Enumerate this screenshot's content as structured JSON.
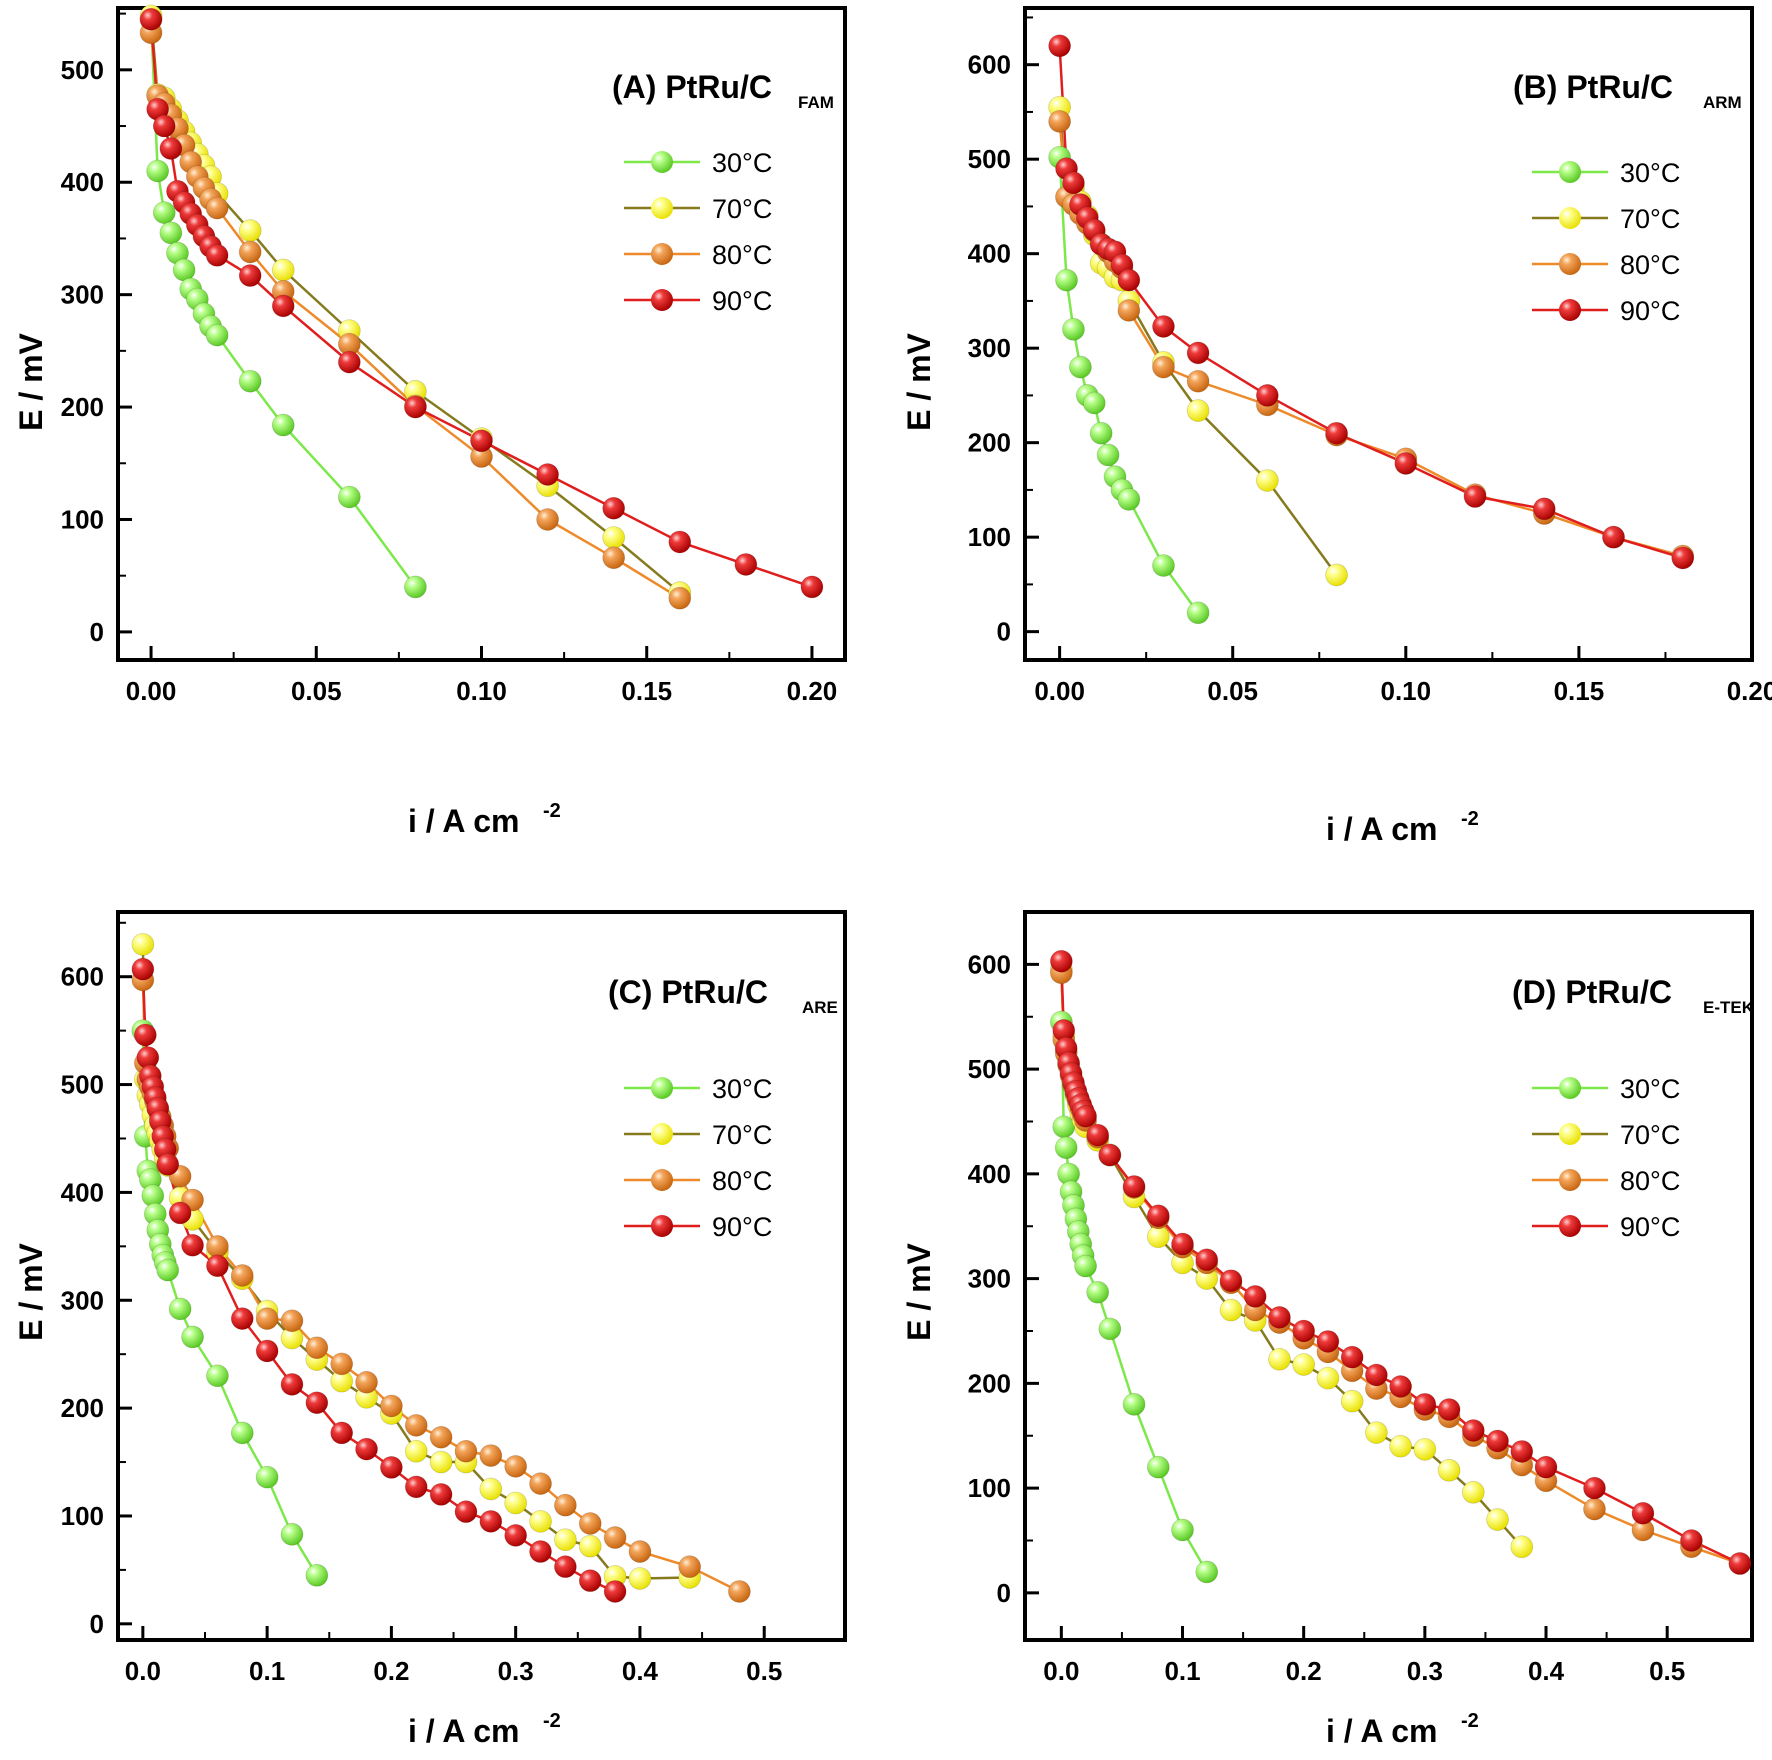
{
  "chart_data": [
    {
      "type": "line",
      "title": "(A) PtRu/C",
      "title_subscript": "FAM",
      "xlabel": "i / A cm",
      "xlabel_sup": "-2",
      "ylabel": "E / mV",
      "xlim": [
        -0.01,
        0.21
      ],
      "ylim": [
        -25,
        555
      ],
      "xticks": [
        0.0,
        0.05,
        0.1,
        0.15,
        0.2
      ],
      "xtick_labels": [
        "0.00",
        "0.05",
        "0.10",
        "0.15",
        "0.20"
      ],
      "yticks": [
        0,
        100,
        200,
        300,
        400,
        500
      ],
      "ytick_labels": [
        "0",
        "100",
        "200",
        "300",
        "400",
        "500"
      ],
      "legend_position": "top-right",
      "series": [
        {
          "name": "30°C",
          "color": "#7ce84a",
          "x": [
            0,
            0.002,
            0.004,
            0.006,
            0.008,
            0.01,
            0.012,
            0.014,
            0.016,
            0.018,
            0.02,
            0.03,
            0.04,
            0.06,
            0.08
          ],
          "y": [
            545,
            410,
            373,
            355,
            337,
            322,
            305,
            296,
            283,
            272,
            264,
            223,
            184,
            120,
            40
          ]
        },
        {
          "name": "70°C",
          "color": "#ffff33",
          "line": "#857a1d",
          "x": [
            0,
            0.002,
            0.004,
            0.006,
            0.008,
            0.01,
            0.012,
            0.014,
            0.016,
            0.018,
            0.02,
            0.03,
            0.04,
            0.06,
            0.08,
            0.1,
            0.12,
            0.14,
            0.16
          ],
          "y": [
            548,
            478,
            475,
            465,
            455,
            445,
            435,
            425,
            415,
            405,
            390,
            357,
            322,
            268,
            214,
            172,
            130,
            84,
            35
          ]
        },
        {
          "name": "80°C",
          "color": "#ee8a2a",
          "x": [
            0,
            0.002,
            0.004,
            0.006,
            0.008,
            0.01,
            0.012,
            0.014,
            0.016,
            0.018,
            0.02,
            0.03,
            0.04,
            0.06,
            0.08,
            0.1,
            0.12,
            0.14,
            0.16
          ],
          "y": [
            533,
            477,
            470,
            460,
            448,
            433,
            418,
            405,
            395,
            385,
            377,
            338,
            303,
            256,
            201,
            156,
            100,
            66,
            30
          ]
        },
        {
          "name": "90°C",
          "color": "#e01e1e",
          "x": [
            0,
            0.002,
            0.004,
            0.006,
            0.008,
            0.01,
            0.012,
            0.014,
            0.016,
            0.018,
            0.02,
            0.03,
            0.04,
            0.06,
            0.08,
            0.1,
            0.12,
            0.14,
            0.16,
            0.18,
            0.2
          ],
          "y": [
            545,
            465,
            450,
            430,
            392,
            382,
            372,
            362,
            352,
            343,
            335,
            317,
            290,
            240,
            200,
            170,
            140,
            110,
            80,
            60,
            40
          ]
        }
      ]
    },
    {
      "type": "line",
      "title": "(B) PtRu/C",
      "title_subscript": "ARM",
      "xlabel": "i / A cm",
      "xlabel_sup": "-2",
      "ylabel": "E / mV",
      "xlim": [
        -0.01,
        0.2
      ],
      "ylim": [
        -30,
        660
      ],
      "xticks": [
        0.0,
        0.05,
        0.1,
        0.15,
        0.2
      ],
      "xtick_labels": [
        "0.00",
        "0.05",
        "0.10",
        "0.15",
        "0.20"
      ],
      "yticks": [
        0,
        100,
        200,
        300,
        400,
        500,
        600
      ],
      "ytick_labels": [
        "0",
        "100",
        "200",
        "300",
        "400",
        "500",
        "600"
      ],
      "legend_position": "top-right",
      "series": [
        {
          "name": "30°C",
          "color": "#7ce84a",
          "x": [
            0,
            0.002,
            0.004,
            0.006,
            0.008,
            0.01,
            0.012,
            0.014,
            0.016,
            0.018,
            0.02,
            0.03,
            0.04
          ],
          "y": [
            502,
            372,
            320,
            280,
            250,
            242,
            210,
            187,
            164,
            150,
            140,
            70,
            20
          ]
        },
        {
          "name": "70°C",
          "color": "#ffff33",
          "line": "#857a1d",
          "x": [
            0,
            0.002,
            0.004,
            0.006,
            0.008,
            0.01,
            0.012,
            0.014,
            0.016,
            0.018,
            0.02,
            0.03,
            0.04,
            0.06,
            0.08
          ],
          "y": [
            555,
            460,
            470,
            455,
            440,
            420,
            390,
            385,
            375,
            372,
            350,
            285,
            234,
            160,
            60
          ]
        },
        {
          "name": "80°C",
          "color": "#ee8a2a",
          "x": [
            0,
            0.002,
            0.004,
            0.006,
            0.008,
            0.01,
            0.012,
            0.014,
            0.016,
            0.018,
            0.02,
            0.03,
            0.04,
            0.06,
            0.08,
            0.1,
            0.12,
            0.14,
            0.16,
            0.18
          ],
          "y": [
            540,
            460,
            452,
            442,
            432,
            424,
            410,
            402,
            392,
            385,
            340,
            280,
            265,
            240,
            208,
            183,
            145,
            125,
            100,
            80
          ]
        },
        {
          "name": "90°C",
          "color": "#e01e1e",
          "x": [
            0,
            0.002,
            0.004,
            0.006,
            0.008,
            0.01,
            0.012,
            0.014,
            0.016,
            0.018,
            0.02,
            0.03,
            0.04,
            0.06,
            0.08,
            0.1,
            0.12,
            0.14,
            0.16,
            0.18
          ],
          "y": [
            620,
            490,
            475,
            452,
            438,
            425,
            410,
            405,
            402,
            388,
            372,
            323,
            295,
            250,
            210,
            178,
            143,
            130,
            100,
            78
          ]
        }
      ]
    },
    {
      "type": "line",
      "title": "(C) PtRu/C",
      "title_subscript": "ARE",
      "xlabel": "i / A cm",
      "xlabel_sup": "-2",
      "ylabel": "E / mV",
      "xlim": [
        -0.02,
        0.565
      ],
      "ylim": [
        -15,
        660
      ],
      "xticks": [
        0.0,
        0.1,
        0.2,
        0.3,
        0.4,
        0.5
      ],
      "xtick_labels": [
        "0.0",
        "0.1",
        "0.2",
        "0.3",
        "0.4",
        "0.5"
      ],
      "yticks": [
        0,
        100,
        200,
        300,
        400,
        500,
        600
      ],
      "ytick_labels": [
        "0",
        "100",
        "200",
        "300",
        "400",
        "500",
        "600"
      ],
      "legend_position": "top-right",
      "series": [
        {
          "name": "30°C",
          "color": "#7ce84a",
          "x": [
            0,
            0.002,
            0.004,
            0.006,
            0.008,
            0.01,
            0.012,
            0.014,
            0.016,
            0.018,
            0.02,
            0.03,
            0.04,
            0.06,
            0.08,
            0.1,
            0.12,
            0.14
          ],
          "y": [
            550,
            452,
            420,
            412,
            397,
            380,
            365,
            352,
            342,
            335,
            328,
            292,
            266,
            230,
            177,
            136,
            83,
            45
          ]
        },
        {
          "name": "70°C",
          "color": "#ffff33",
          "line": "#857a1d",
          "x": [
            0,
            0.002,
            0.004,
            0.006,
            0.008,
            0.01,
            0.012,
            0.014,
            0.016,
            0.018,
            0.02,
            0.03,
            0.04,
            0.06,
            0.08,
            0.1,
            0.12,
            0.14,
            0.16,
            0.18,
            0.2,
            0.22,
            0.24,
            0.26,
            0.28,
            0.3,
            0.32,
            0.34,
            0.36,
            0.38,
            0.4,
            0.44
          ],
          "y": [
            630,
            505,
            490,
            482,
            472,
            462,
            455,
            448,
            440,
            432,
            425,
            395,
            375,
            345,
            320,
            290,
            265,
            245,
            225,
            210,
            195,
            160,
            150,
            150,
            125,
            112,
            95,
            78,
            72,
            44,
            42,
            43
          ]
        },
        {
          "name": "80°C",
          "color": "#ee8a2a",
          "x": [
            0,
            0.002,
            0.004,
            0.006,
            0.008,
            0.01,
            0.012,
            0.014,
            0.016,
            0.018,
            0.02,
            0.03,
            0.04,
            0.06,
            0.08,
            0.1,
            0.12,
            0.14,
            0.16,
            0.18,
            0.2,
            0.22,
            0.24,
            0.26,
            0.28,
            0.3,
            0.32,
            0.34,
            0.36,
            0.38,
            0.4,
            0.44,
            0.48
          ],
          "y": [
            597,
            520,
            505,
            498,
            492,
            485,
            478,
            470,
            462,
            452,
            441,
            415,
            393,
            350,
            323,
            283,
            281,
            256,
            241,
            224,
            202,
            184,
            173,
            160,
            156,
            146,
            130,
            110,
            93,
            80,
            67,
            53,
            30
          ]
        },
        {
          "name": "90°C",
          "color": "#e01e1e",
          "x": [
            0,
            0.002,
            0.004,
            0.006,
            0.008,
            0.01,
            0.012,
            0.014,
            0.016,
            0.018,
            0.02,
            0.03,
            0.04,
            0.06,
            0.08,
            0.1,
            0.12,
            0.14,
            0.16,
            0.18,
            0.2,
            0.22,
            0.24,
            0.26,
            0.28,
            0.3,
            0.32,
            0.34,
            0.36,
            0.38
          ],
          "y": [
            607,
            546,
            525,
            508,
            498,
            488,
            478,
            466,
            452,
            440,
            426,
            381,
            351,
            332,
            283,
            253,
            222,
            205,
            177,
            162,
            145,
            127,
            120,
            104,
            95,
            82,
            67,
            53,
            40,
            30
          ]
        }
      ]
    },
    {
      "type": "line",
      "title": "(D) PtRu/C",
      "title_subscript": "E-TEK",
      "xlabel": "i / A cm",
      "xlabel_sup": "-2",
      "ylabel": "E / mV",
      "xlim": [
        -0.03,
        0.57
      ],
      "ylim": [
        -45,
        650
      ],
      "xticks": [
        0.0,
        0.1,
        0.2,
        0.3,
        0.4,
        0.5
      ],
      "xtick_labels": [
        "0.0",
        "0.1",
        "0.2",
        "0.3",
        "0.4",
        "0.5"
      ],
      "yticks": [
        0,
        100,
        200,
        300,
        400,
        500,
        600
      ],
      "ytick_labels": [
        "0",
        "100",
        "200",
        "300",
        "400",
        "500",
        "600"
      ],
      "legend_position": "top-right",
      "series": [
        {
          "name": "30°C",
          "color": "#7ce84a",
          "x": [
            0,
            0.002,
            0.004,
            0.006,
            0.008,
            0.01,
            0.012,
            0.014,
            0.016,
            0.018,
            0.02,
            0.03,
            0.04,
            0.06,
            0.08,
            0.1,
            0.12
          ],
          "y": [
            545,
            445,
            425,
            400,
            383,
            370,
            357,
            345,
            333,
            322,
            312,
            287,
            252,
            180,
            120,
            60,
            20
          ]
        },
        {
          "name": "70°C",
          "color": "#ffff33",
          "line": "#857a1d",
          "x": [
            0,
            0.002,
            0.004,
            0.006,
            0.008,
            0.01,
            0.012,
            0.014,
            0.016,
            0.018,
            0.02,
            0.03,
            0.04,
            0.06,
            0.08,
            0.1,
            0.12,
            0.14,
            0.16,
            0.18,
            0.2,
            0.22,
            0.24,
            0.26,
            0.28,
            0.3,
            0.32,
            0.34,
            0.36,
            0.38
          ],
          "y": [
            595,
            532,
            517,
            505,
            495,
            485,
            475,
            466,
            458,
            451,
            445,
            432,
            418,
            378,
            340,
            315,
            300,
            270,
            260,
            223,
            218,
            205,
            183,
            153,
            140,
            137,
            117,
            96,
            70,
            44
          ]
        },
        {
          "name": "80°C",
          "color": "#ee8a2a",
          "x": [
            0,
            0.002,
            0.004,
            0.006,
            0.008,
            0.01,
            0.012,
            0.014,
            0.016,
            0.018,
            0.02,
            0.03,
            0.04,
            0.06,
            0.08,
            0.1,
            0.12,
            0.14,
            0.16,
            0.18,
            0.2,
            0.22,
            0.24,
            0.26,
            0.28,
            0.3,
            0.32,
            0.34,
            0.36,
            0.38,
            0.4,
            0.44,
            0.48,
            0.52,
            0.56
          ],
          "y": [
            592,
            528,
            515,
            504,
            494,
            485,
            477,
            470,
            463,
            457,
            451,
            435,
            418,
            387,
            358,
            330,
            315,
            296,
            270,
            258,
            243,
            230,
            212,
            195,
            187,
            175,
            168,
            150,
            138,
            122,
            107,
            80,
            60,
            44,
            28
          ]
        },
        {
          "name": "90°C",
          "color": "#e01e1e",
          "x": [
            0,
            0.002,
            0.004,
            0.006,
            0.008,
            0.01,
            0.012,
            0.014,
            0.016,
            0.018,
            0.02,
            0.03,
            0.04,
            0.06,
            0.08,
            0.1,
            0.12,
            0.14,
            0.16,
            0.18,
            0.2,
            0.22,
            0.24,
            0.26,
            0.28,
            0.3,
            0.32,
            0.34,
            0.36,
            0.38,
            0.4,
            0.44,
            0.48,
            0.52,
            0.56
          ],
          "y": [
            603,
            537,
            520,
            506,
            496,
            487,
            479,
            472,
            466,
            460,
            455,
            437,
            418,
            388,
            360,
            333,
            318,
            298,
            283,
            263,
            250,
            240,
            225,
            208,
            197,
            180,
            175,
            155,
            145,
            135,
            120,
            100,
            76,
            50,
            28
          ]
        }
      ]
    }
  ]
}
